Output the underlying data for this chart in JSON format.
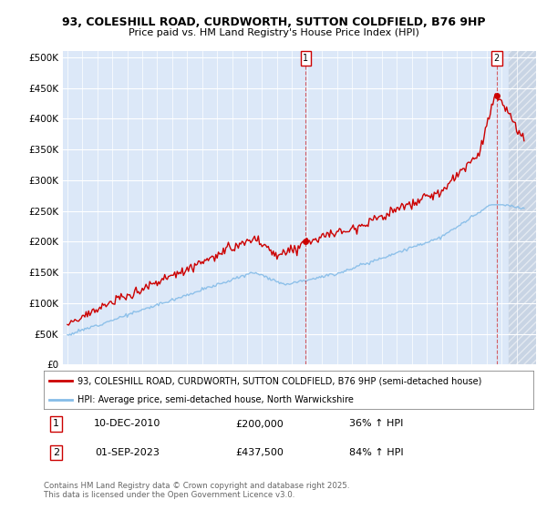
{
  "title_line1": "93, COLESHILL ROAD, CURDWORTH, SUTTON COLDFIELD, B76 9HP",
  "title_line2": "Price paid vs. HM Land Registry's House Price Index (HPI)",
  "background_color": "#dce8f8",
  "line1_color": "#cc0000",
  "line2_color": "#85bce8",
  "annotation1": [
    "1",
    "10-DEC-2010",
    "£200,000",
    "36% ↑ HPI"
  ],
  "annotation2": [
    "2",
    "01-SEP-2023",
    "£437,500",
    "84% ↑ HPI"
  ],
  "legend_line1": "93, COLESHILL ROAD, CURDWORTH, SUTTON COLDFIELD, B76 9HP (semi-detached house)",
  "legend_line2": "HPI: Average price, semi-detached house, North Warwickshire",
  "footer": "Contains HM Land Registry data © Crown copyright and database right 2025.\nThis data is licensed under the Open Government Licence v3.0.",
  "ylim": [
    0,
    510000
  ],
  "yticks": [
    0,
    50000,
    100000,
    150000,
    200000,
    250000,
    300000,
    350000,
    400000,
    450000,
    500000
  ],
  "ytick_labels": [
    "£0",
    "£50K",
    "£100K",
    "£150K",
    "£200K",
    "£250K",
    "£300K",
    "£350K",
    "£400K",
    "£450K",
    "£500K"
  ],
  "hatch_color": "#c8d4e4",
  "marker1_x": 2010.92,
  "marker2_x": 2023.67,
  "marker1_y": 200000,
  "marker2_y": 437500,
  "xmin": 1994.7,
  "xmax": 2026.3,
  "hatch_start": 2024.5
}
